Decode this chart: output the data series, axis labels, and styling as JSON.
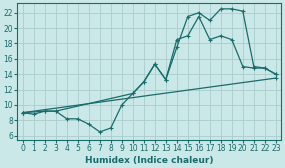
{
  "xlabel": "Humidex (Indice chaleur)",
  "bg_color": "#cbe8e8",
  "grid_color": "#aacccc",
  "line_color": "#1a6b6b",
  "xlim": [
    -0.5,
    23.5
  ],
  "ylim": [
    5.5,
    23.2
  ],
  "xticks": [
    0,
    1,
    2,
    3,
    4,
    5,
    6,
    7,
    8,
    9,
    10,
    11,
    12,
    13,
    14,
    15,
    16,
    17,
    18,
    19,
    20,
    21,
    22,
    23
  ],
  "yticks": [
    6,
    8,
    10,
    12,
    14,
    16,
    18,
    20,
    22
  ],
  "line1_x": [
    0,
    1,
    2,
    3,
    4,
    5,
    6,
    7,
    8,
    9,
    10,
    11,
    12,
    13,
    14,
    15,
    16,
    17,
    18,
    19,
    20,
    21,
    22,
    23
  ],
  "line1_y": [
    9.0,
    8.8,
    9.2,
    9.2,
    8.2,
    8.2,
    7.5,
    6.5,
    7.0,
    10.0,
    11.5,
    13.0,
    15.3,
    13.3,
    17.5,
    21.5,
    22.0,
    21.0,
    22.5,
    22.5,
    22.2,
    15.0,
    14.8,
    14.0
  ],
  "line2_x": [
    0,
    2,
    3,
    10,
    11,
    12,
    13,
    14,
    15,
    16,
    17,
    18,
    19,
    20,
    21,
    22,
    23
  ],
  "line2_y": [
    9.0,
    9.2,
    9.2,
    11.5,
    13.0,
    15.3,
    13.3,
    18.5,
    19.0,
    21.5,
    18.5,
    19.0,
    18.5,
    15.0,
    14.8,
    14.8,
    14.0
  ],
  "line3_x": [
    0,
    23
  ],
  "line3_y": [
    9.0,
    13.5
  ]
}
